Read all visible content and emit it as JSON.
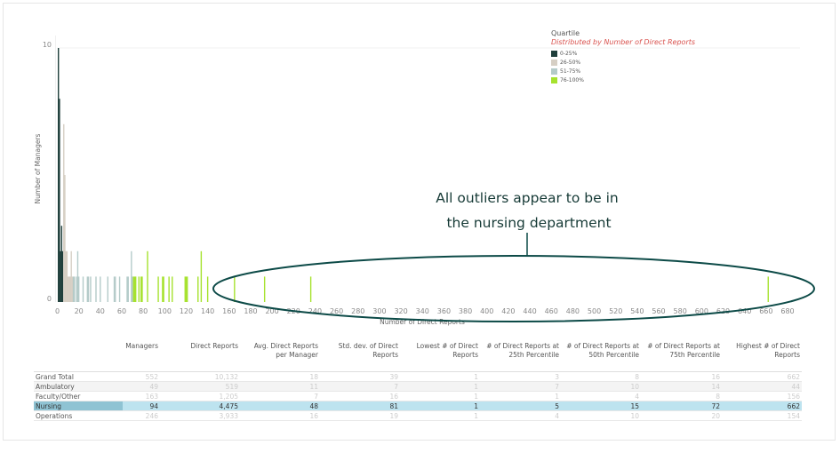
{
  "colors": {
    "q1": "#1f3f3b",
    "q2": "#d6cfc4",
    "q3": "#b4cbc9",
    "q4": "#a6e22e",
    "annotation": "#0c4a47",
    "highlight": "#bde3ef"
  },
  "legend": {
    "title": "Quartile",
    "subtitle": "Distributed by Number of Direct Reports",
    "items": [
      {
        "label": "0-25%",
        "key": "q1"
      },
      {
        "label": "26-50%",
        "key": "q2"
      },
      {
        "label": "51-75%",
        "key": "q3"
      },
      {
        "label": "76-100%",
        "key": "q4"
      }
    ]
  },
  "annotation": {
    "line1": "All outliers appear to be in",
    "line2": "the nursing department"
  },
  "chart_data": {
    "type": "bar",
    "xlabel": "Number of Direct Reports",
    "ylabel": "Number of Managers",
    "xlim": [
      0,
      690
    ],
    "ylim": [
      0,
      10
    ],
    "xticks": [
      0,
      20,
      40,
      60,
      80,
      100,
      120,
      140,
      160,
      180,
      200,
      220,
      240,
      260,
      280,
      300,
      320,
      340,
      360,
      380,
      400,
      420,
      440,
      460,
      480,
      500,
      520,
      540,
      560,
      580,
      600,
      620,
      640,
      660,
      680
    ],
    "yticks": [
      0,
      10
    ],
    "bars": [
      [
        1,
        10,
        "q1"
      ],
      [
        2,
        8,
        "q1"
      ],
      [
        3,
        2,
        "q1"
      ],
      [
        4,
        3,
        "q1"
      ],
      [
        5,
        2,
        "q1"
      ],
      [
        6,
        7,
        "q2"
      ],
      [
        7,
        5,
        "q2"
      ],
      [
        8,
        2,
        "q2"
      ],
      [
        9,
        2,
        "q2"
      ],
      [
        10,
        1,
        "q2"
      ],
      [
        11,
        1,
        "q2"
      ],
      [
        12,
        1,
        "q2"
      ],
      [
        13,
        2,
        "q2"
      ],
      [
        14,
        1,
        "q2"
      ],
      [
        15,
        1,
        "q3"
      ],
      [
        16,
        1,
        "q3"
      ],
      [
        18,
        1,
        "q3"
      ],
      [
        19,
        2,
        "q3"
      ],
      [
        20,
        1,
        "q3"
      ],
      [
        24,
        1,
        "q3"
      ],
      [
        28,
        1,
        "q3"
      ],
      [
        29,
        1,
        "q3"
      ],
      [
        31,
        1,
        "q3"
      ],
      [
        36,
        1,
        "q3"
      ],
      [
        40,
        1,
        "q3"
      ],
      [
        47,
        1,
        "q3"
      ],
      [
        53,
        1,
        "q3"
      ],
      [
        54,
        1,
        "q3"
      ],
      [
        58,
        1,
        "q3"
      ],
      [
        65,
        1,
        "q3"
      ],
      [
        66,
        1,
        "q3"
      ],
      [
        69,
        2,
        "q3"
      ],
      [
        70,
        1,
        "q3"
      ],
      [
        71,
        1,
        "q4"
      ],
      [
        72,
        1,
        "q4"
      ],
      [
        73,
        1,
        "q4"
      ],
      [
        76,
        1,
        "q4"
      ],
      [
        78,
        1,
        "q4"
      ],
      [
        79,
        1,
        "q4"
      ],
      [
        84,
        2,
        "q4"
      ],
      [
        94,
        1,
        "q4"
      ],
      [
        98,
        1,
        "q4"
      ],
      [
        99,
        1,
        "q4"
      ],
      [
        104,
        1,
        "q4"
      ],
      [
        107,
        1,
        "q4"
      ],
      [
        119,
        1,
        "q4"
      ],
      [
        120,
        1,
        "q4"
      ],
      [
        121,
        1,
        "q4"
      ],
      [
        131,
        1,
        "q4"
      ],
      [
        134,
        2,
        "q4"
      ],
      [
        140,
        1,
        "q4"
      ],
      [
        165,
        1,
        "q4"
      ],
      [
        193,
        1,
        "q4"
      ],
      [
        236,
        1,
        "q4"
      ],
      [
        662,
        1,
        "q4"
      ]
    ]
  },
  "table": {
    "headers": [
      "",
      "Managers",
      "Direct Reports",
      "Avg. Direct Reports per Manager",
      "Std. dev. of Direct Reports",
      "Lowest # of Direct Reports",
      "# of Direct Reports at 25th Percentile",
      "# of Direct Reports at 50th Percentile",
      "# of Direct Reports at 75th Percentile",
      "Highest # of Direct Reports"
    ],
    "rows": [
      [
        "Grand Total",
        "552",
        "10,132",
        "18",
        "39",
        "1",
        "3",
        "8",
        "16",
        "662"
      ],
      [
        "Ambulatory",
        "49",
        "519",
        "11",
        "7",
        "1",
        "7",
        "10",
        "14",
        "44"
      ],
      [
        "Faculty/Other",
        "163",
        "1,205",
        "7",
        "16",
        "1",
        "1",
        "4",
        "8",
        "156"
      ],
      [
        "Nursing",
        "94",
        "4,475",
        "48",
        "81",
        "1",
        "5",
        "15",
        "72",
        "662"
      ],
      [
        "Operations",
        "246",
        "3,933",
        "16",
        "19",
        "1",
        "4",
        "10",
        "20",
        "154"
      ]
    ],
    "highlighted_row": "Nursing"
  }
}
